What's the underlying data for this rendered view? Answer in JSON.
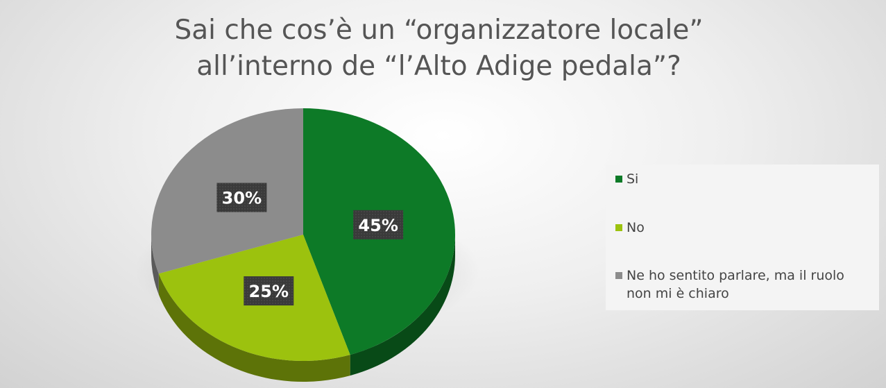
{
  "chart_data": {
    "type": "pie",
    "title_lines": [
      "Sai che cos’è un “organizzatore locale”",
      "all’interno de “l’Alto Adige pedala”?"
    ],
    "slices": [
      {
        "name": "Si",
        "value": 45,
        "label": "45%",
        "color": "#0d7a27",
        "side_color": "#084a17"
      },
      {
        "name": "No",
        "value": 25,
        "label": "25%",
        "color": "#9cc20e",
        "side_color": "#5d7308"
      },
      {
        "name": "Ne ho sentito parlare, ma il ruolo non mi è chiaro",
        "value": 30,
        "label": "30%",
        "color": "#8c8c8c",
        "side_color": "#5a5a5a"
      }
    ],
    "legend": {
      "placement": "right"
    }
  }
}
